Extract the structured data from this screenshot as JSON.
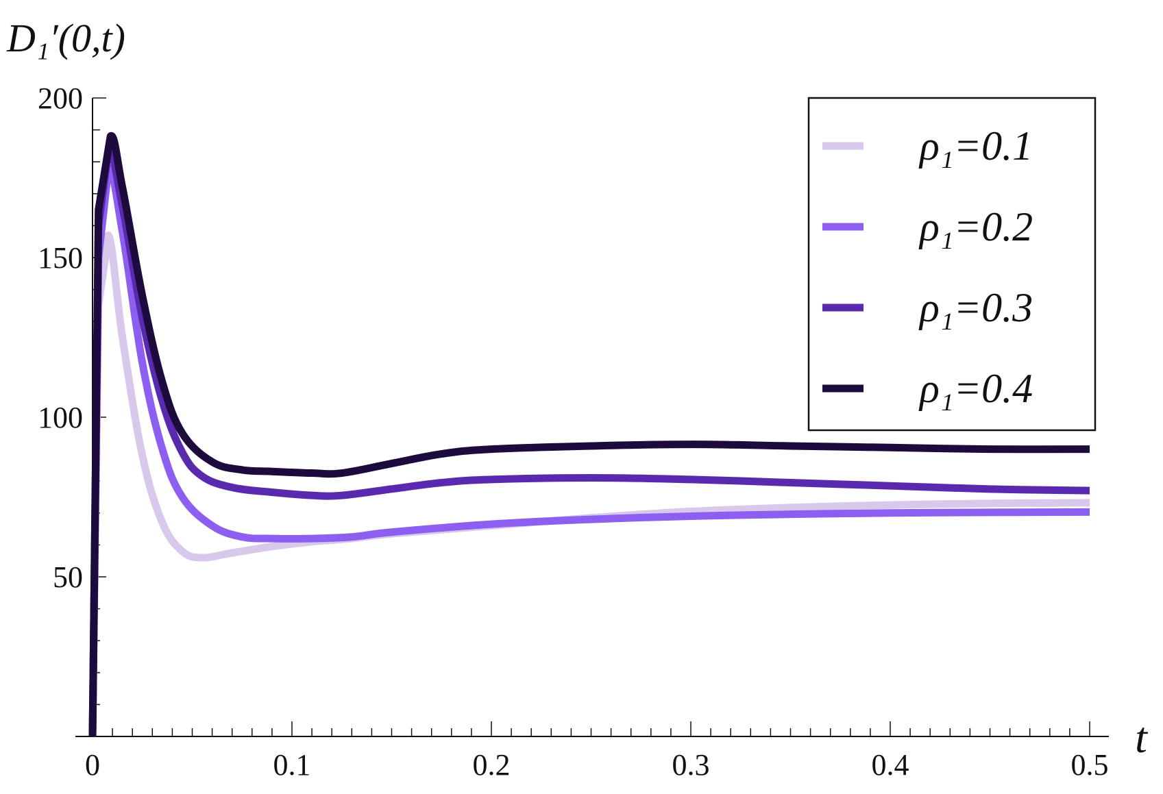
{
  "chart_data": {
    "type": "line",
    "title": "",
    "ylabel": "D₁′(0,t)",
    "xlabel": "t",
    "xlim": [
      0,
      0.5
    ],
    "ylim": [
      0,
      200
    ],
    "xticks": [
      0,
      0.1,
      0.2,
      0.3,
      0.4,
      0.5
    ],
    "xtick_labels": [
      "0",
      "0.1",
      "0.2",
      "0.3",
      "0.4",
      "0.5"
    ],
    "yticks": [
      50,
      100,
      150,
      200
    ],
    "ytick_labels": [
      "50",
      "100",
      "150",
      "200"
    ],
    "grid": false,
    "legend_position": "top-right",
    "series": [
      {
        "name": "ρ₁=0.1",
        "color": "#d7c8ec",
        "points": [
          [
            0,
            0
          ],
          [
            0.003,
            135
          ],
          [
            0.008,
            157
          ],
          [
            0.015,
            125
          ],
          [
            0.025,
            88
          ],
          [
            0.035,
            67
          ],
          [
            0.045,
            58
          ],
          [
            0.055,
            56
          ],
          [
            0.07,
            57.5
          ],
          [
            0.09,
            59.5
          ],
          [
            0.11,
            61
          ],
          [
            0.13,
            62
          ],
          [
            0.15,
            63.5
          ],
          [
            0.2,
            66
          ],
          [
            0.25,
            68.5
          ],
          [
            0.3,
            70.5
          ],
          [
            0.35,
            71.7
          ],
          [
            0.4,
            72.5
          ],
          [
            0.45,
            73
          ],
          [
            0.5,
            73.2
          ]
        ]
      },
      {
        "name": "ρ₁=0.2",
        "color": "#8d5ff0",
        "points": [
          [
            0,
            0
          ],
          [
            0.003,
            150
          ],
          [
            0.008,
            178
          ],
          [
            0.015,
            158
          ],
          [
            0.025,
            117
          ],
          [
            0.035,
            90
          ],
          [
            0.045,
            75
          ],
          [
            0.06,
            66
          ],
          [
            0.075,
            62.5
          ],
          [
            0.09,
            62
          ],
          [
            0.11,
            62
          ],
          [
            0.13,
            62.5
          ],
          [
            0.15,
            64
          ],
          [
            0.2,
            66.5
          ],
          [
            0.25,
            68
          ],
          [
            0.3,
            69
          ],
          [
            0.35,
            69.6
          ],
          [
            0.4,
            70
          ],
          [
            0.45,
            70.2
          ],
          [
            0.5,
            70.3
          ]
        ]
      },
      {
        "name": "ρ₁=0.3",
        "color": "#5a2aae",
        "points": [
          [
            0,
            0
          ],
          [
            0.003,
            160
          ],
          [
            0.008,
            184
          ],
          [
            0.015,
            166
          ],
          [
            0.025,
            131
          ],
          [
            0.035,
            105
          ],
          [
            0.045,
            89
          ],
          [
            0.055,
            81.5
          ],
          [
            0.07,
            78
          ],
          [
            0.09,
            76.5
          ],
          [
            0.11,
            75.5
          ],
          [
            0.125,
            75.5
          ],
          [
            0.15,
            77.5
          ],
          [
            0.175,
            79.5
          ],
          [
            0.2,
            80.5
          ],
          [
            0.25,
            81
          ],
          [
            0.3,
            80.5
          ],
          [
            0.35,
            79.5
          ],
          [
            0.4,
            78.5
          ],
          [
            0.45,
            77.5
          ],
          [
            0.5,
            77
          ]
        ]
      },
      {
        "name": "ρ₁=0.4",
        "color": "#1c0b3c",
        "points": [
          [
            0,
            0
          ],
          [
            0.003,
            165
          ],
          [
            0.009,
            188
          ],
          [
            0.015,
            172
          ],
          [
            0.025,
            138
          ],
          [
            0.035,
            111
          ],
          [
            0.045,
            95
          ],
          [
            0.06,
            86
          ],
          [
            0.075,
            83.5
          ],
          [
            0.09,
            83
          ],
          [
            0.11,
            82.5
          ],
          [
            0.125,
            82.5
          ],
          [
            0.15,
            85.5
          ],
          [
            0.175,
            88.5
          ],
          [
            0.2,
            90
          ],
          [
            0.25,
            91
          ],
          [
            0.3,
            91.5
          ],
          [
            0.35,
            91
          ],
          [
            0.4,
            90.5
          ],
          [
            0.45,
            90
          ],
          [
            0.5,
            90
          ]
        ]
      }
    ]
  }
}
